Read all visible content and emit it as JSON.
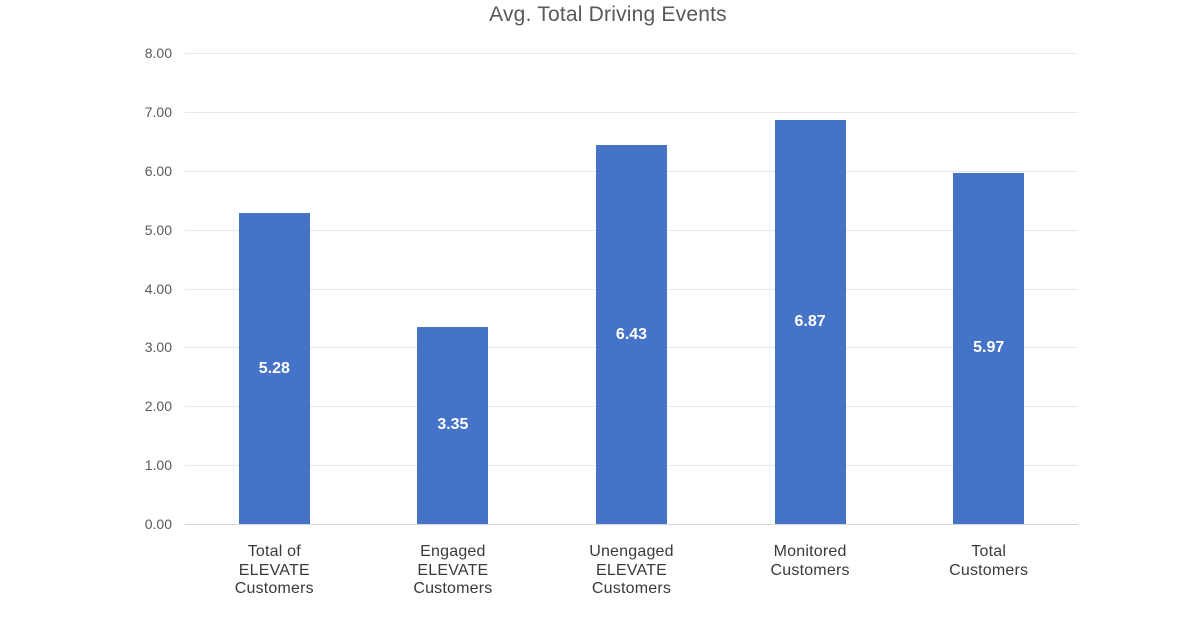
{
  "chart_data": {
    "type": "bar",
    "title": "Avg. Total Driving Events",
    "categories": [
      [
        "Total of",
        "ELEVATE",
        "Customers"
      ],
      [
        "Engaged",
        "ELEVATE",
        "Customers"
      ],
      [
        "Unengaged",
        "ELEVATE",
        "Customers"
      ],
      [
        "Monitored",
        "Customers"
      ],
      [
        "Total",
        "Customers"
      ]
    ],
    "values": [
      5.28,
      3.35,
      6.43,
      6.87,
      5.97
    ],
    "data_labels": [
      "5.28",
      "3.35",
      "6.43",
      "6.87",
      "5.97"
    ],
    "xlabel": "",
    "ylabel": "",
    "ylim": [
      0,
      8
    ],
    "ytick_step": 1,
    "ytick_labels": [
      "0.00",
      "1.00",
      "2.00",
      "3.00",
      "4.00",
      "5.00",
      "6.00",
      "7.00",
      "8.00"
    ],
    "grid": true,
    "legend": false,
    "bar_color": "#4573C7",
    "data_label_color": "#ffffff"
  },
  "colors": {
    "title": "#595959",
    "ytick": "#595959",
    "category": "#3a3a3a",
    "gridline": "#e8e8e8",
    "axis_line": "#d6d6d6",
    "bar": "#4573C7",
    "background": "#ffffff"
  }
}
